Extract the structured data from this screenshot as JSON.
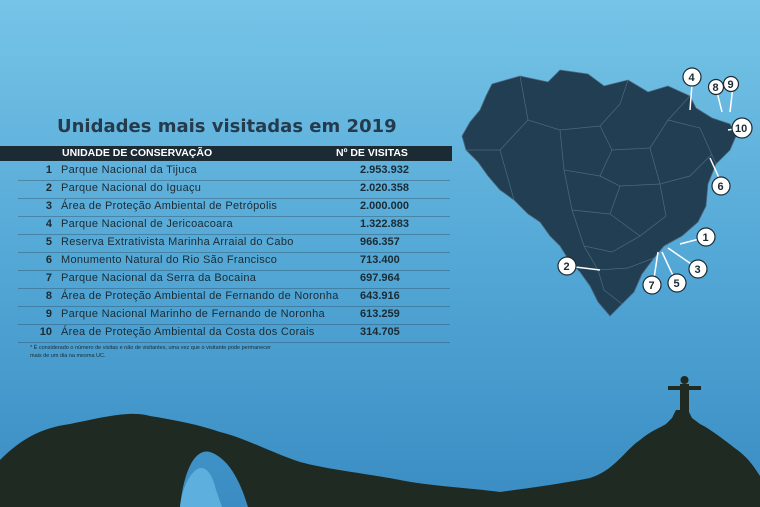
{
  "title": "Unidades mais visitadas em 2019",
  "table": {
    "col_unit": "UNIDADE DE CONSERVAÇÃO",
    "col_visits": "Nº DE VISITAS",
    "rows": [
      {
        "rank": "1",
        "name": "Parque Nacional da Tijuca",
        "visits": "2.953.932"
      },
      {
        "rank": "2",
        "name": "Parque Nacional do Iguaçu",
        "visits": "2.020.358"
      },
      {
        "rank": "3",
        "name": "Área de Proteção Ambiental de Petrópolis",
        "visits": "2.000.000"
      },
      {
        "rank": "4",
        "name": "Parque Nacional de Jericoacoara",
        "visits": "1.322.883"
      },
      {
        "rank": "5",
        "name": "Reserva Extrativista Marinha Arraial do Cabo",
        "visits": "966.357"
      },
      {
        "rank": "6",
        "name": "Monumento Natural do Rio São Francisco",
        "visits": "713.400"
      },
      {
        "rank": "7",
        "name": "Parque Nacional da Serra da Bocaina",
        "visits": "697.964"
      },
      {
        "rank": "8",
        "name": "Área de Proteção Ambiental de Fernando de Noronha",
        "visits": "643.916"
      },
      {
        "rank": "9",
        "name": "Parque Nacional Marinho de Fernando de Noronha",
        "visits": "613.259"
      },
      {
        "rank": "10",
        "name": "Área de Proteção Ambiental da Costa dos Corais",
        "visits": "314.705"
      }
    ]
  },
  "footnote": "* É considerado o número de visitas e não de visitantes, uma vez que o visitante pode permanecer mais de um dia na mesma UC.",
  "map_markers": [
    "1",
    "2",
    "3",
    "4",
    "5",
    "6",
    "7",
    "8",
    "9",
    "10"
  ],
  "colors": {
    "background_top": "#74c3e6",
    "background_bottom": "#3b8fc4",
    "map_fill": "#223e52",
    "silhouette": "#1e2a22"
  }
}
